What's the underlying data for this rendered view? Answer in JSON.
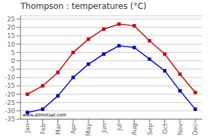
{
  "chart_data": {
    "type": "line",
    "title": "Thompson : temperatures (°C)",
    "categories": [
      "Jan",
      "Feb",
      "Mar",
      "Apr",
      "May",
      "Jun",
      "Jul",
      "Aug",
      "Sep",
      "Oct",
      "Nov",
      "Dec"
    ],
    "series": [
      {
        "color": "#cc0000",
        "values": [
          -20,
          -15,
          -7,
          5,
          13,
          19,
          22,
          21,
          12,
          4,
          -8,
          -19
        ]
      },
      {
        "color": "#0000cc",
        "values": [
          -31,
          -29,
          -21,
          -10,
          -2,
          4,
          9,
          8,
          1,
          -6,
          -18,
          -29
        ]
      }
    ],
    "ylim": [
      -35,
      27
    ],
    "yticks": [
      -35,
      -30,
      -25,
      -20,
      -15,
      -10,
      -5,
      0,
      5,
      10,
      15,
      20,
      25
    ],
    "grid": true,
    "marker": "square",
    "annotations": [
      "www.allmetsat.com"
    ]
  }
}
